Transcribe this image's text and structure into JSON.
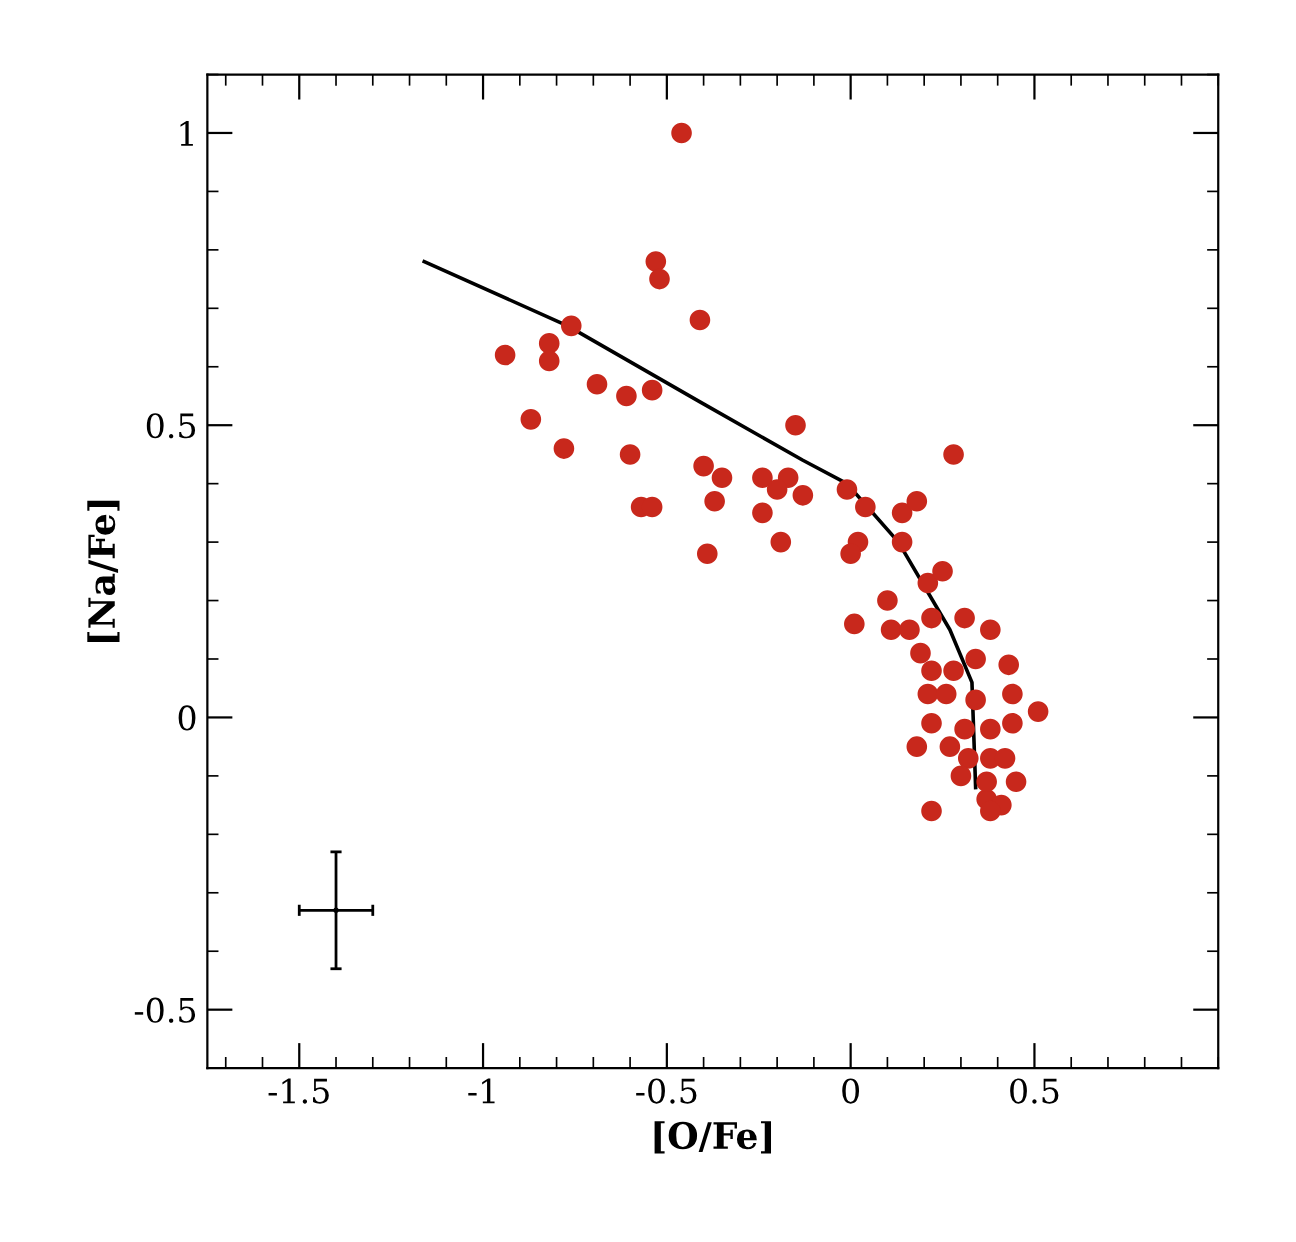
{
  "chart_data": {
    "type": "scatter",
    "xlabel": "[O/Fe]",
    "ylabel": "[Na/Fe]",
    "xlim": [
      -1.75,
      1.0
    ],
    "ylim": [
      -0.6,
      1.1
    ],
    "xticks": [
      -1.5,
      -1,
      -0.5,
      0,
      0.5
    ],
    "yticks": [
      -0.5,
      0,
      0.5,
      1
    ],
    "grid": false,
    "legend": false,
    "series": [
      {
        "color": "#c8281c",
        "marker": "circle",
        "x": [
          -0.46,
          -0.53,
          -0.52,
          -0.76,
          -0.94,
          -0.82,
          -0.82,
          -0.41,
          -0.69,
          -0.87,
          -0.61,
          -0.54,
          -0.78,
          -0.6,
          -0.15,
          -0.4,
          -0.35,
          -0.57,
          -0.54,
          -0.24,
          -0.37,
          -0.17,
          -0.2,
          0.28,
          -0.13,
          -0.24,
          -0.01,
          -0.39,
          0.04,
          -0.19,
          0.14,
          0.18,
          0.02,
          0.0,
          0.14,
          0.01,
          0.1,
          0.21,
          0.25,
          0.11,
          0.16,
          0.22,
          0.31,
          0.19,
          0.38,
          0.22,
          0.28,
          0.34,
          0.21,
          0.26,
          0.43,
          0.34,
          0.44,
          0.22,
          0.31,
          0.51,
          0.18,
          0.27,
          0.38,
          0.44,
          0.32,
          0.38,
          0.3,
          0.42,
          0.22,
          0.37,
          0.41,
          0.45,
          0.38,
          0.37
        ],
        "values": [
          1.0,
          0.78,
          0.75,
          0.67,
          0.62,
          0.64,
          0.61,
          0.68,
          0.57,
          0.51,
          0.55,
          0.56,
          0.46,
          0.45,
          0.5,
          0.43,
          0.41,
          0.36,
          0.36,
          0.41,
          0.37,
          0.41,
          0.39,
          0.45,
          0.38,
          0.35,
          0.39,
          0.28,
          0.36,
          0.3,
          0.35,
          0.37,
          0.3,
          0.28,
          0.3,
          0.16,
          0.2,
          0.23,
          0.25,
          0.15,
          0.15,
          0.17,
          0.17,
          0.11,
          0.15,
          0.08,
          0.08,
          0.1,
          0.04,
          0.04,
          0.09,
          0.03,
          0.04,
          -0.01,
          -0.02,
          0.01,
          -0.05,
          -0.05,
          -0.02,
          -0.01,
          -0.07,
          -0.07,
          -0.1,
          -0.07,
          -0.16,
          -0.14,
          -0.15,
          -0.11,
          -0.16,
          -0.11
        ]
      },
      {
        "type": "line",
        "color": "#000000",
        "marker": "none",
        "line_style": "solid",
        "x": [
          -1.16,
          -0.77,
          -0.41,
          -0.13,
          -0.01,
          0.13,
          0.27,
          0.33,
          0.34
        ],
        "values": [
          0.78,
          0.67,
          0.54,
          0.44,
          0.4,
          0.3,
          0.15,
          0.06,
          -0.12
        ]
      },
      {
        "color": "#000000",
        "marker": "circle",
        "x": [
          -1.4
        ],
        "values": [
          -0.33
        ],
        "errors": [
          0.1
        ],
        "xerrors": [
          0.1
        ]
      }
    ]
  }
}
